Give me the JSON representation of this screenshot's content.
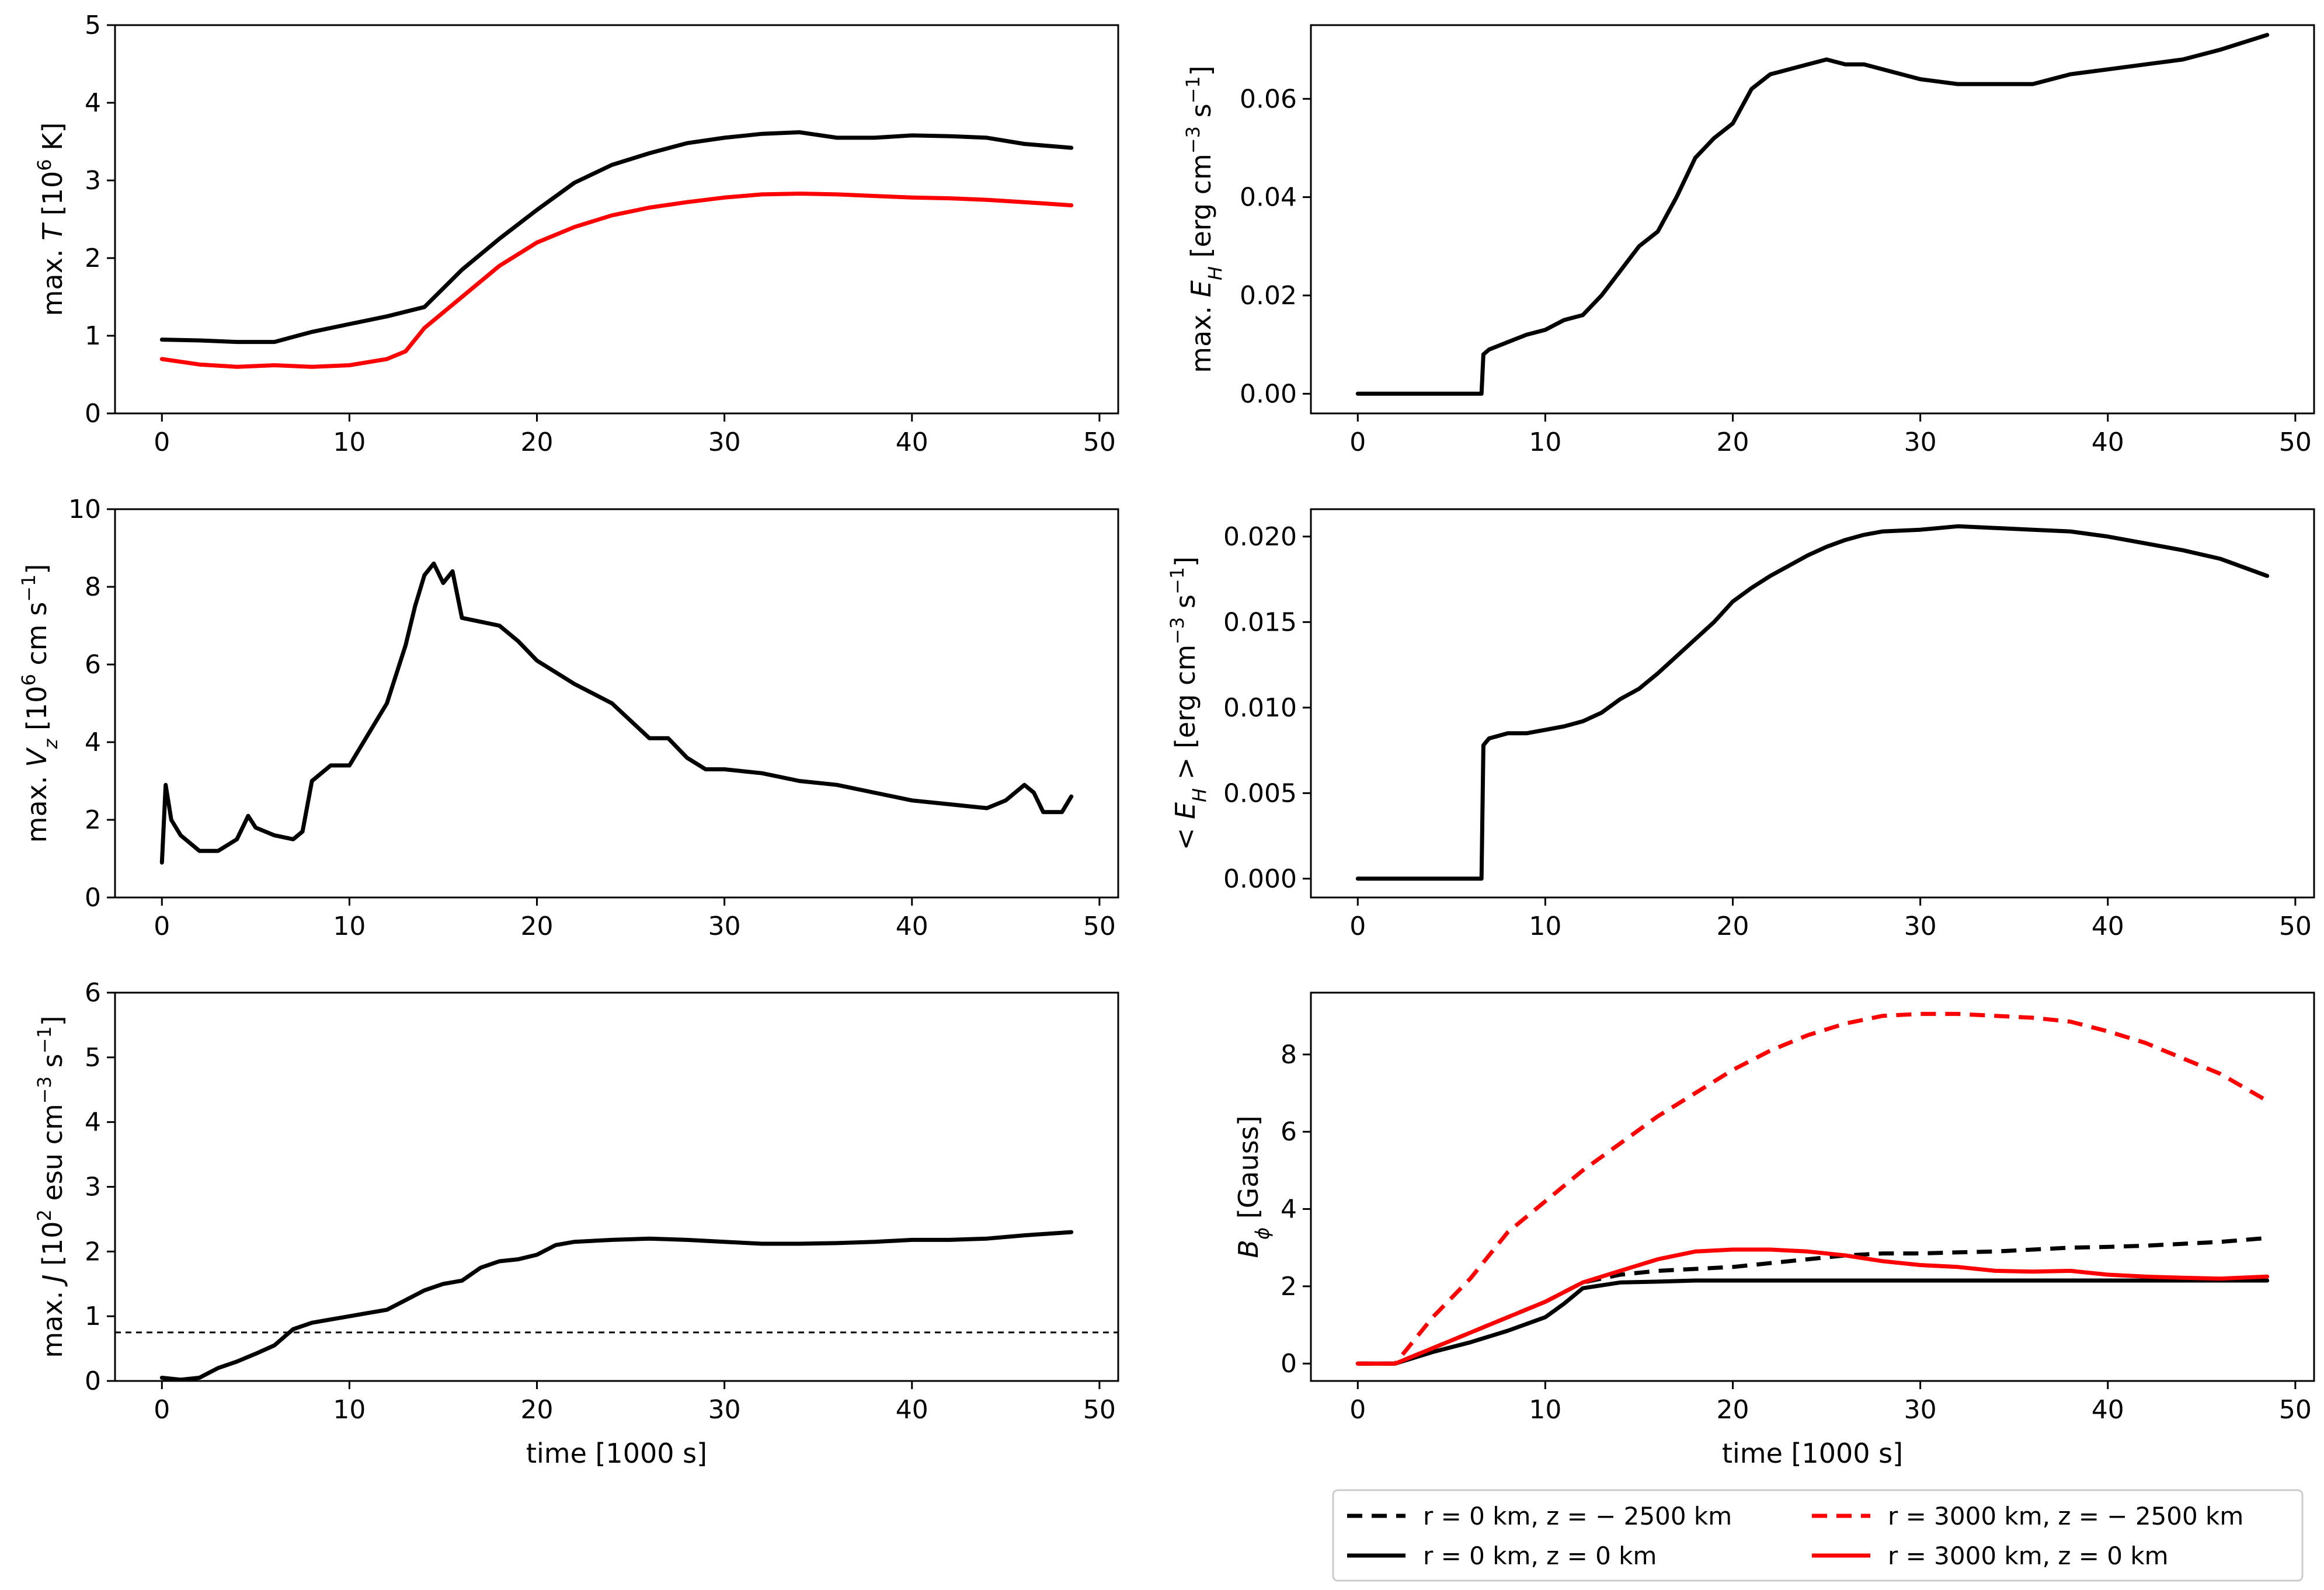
{
  "figure": {
    "xlabel": "time [1000 s]"
  },
  "chart_data": [
    {
      "id": "maxT",
      "type": "line",
      "ylabel": "max. T [10^6 K]",
      "ylabel_parts": {
        "prefix": "max. ",
        "var": "T",
        "mid": " [10",
        "sup": "6",
        "unit": " K]"
      },
      "xlim": [
        -2.5,
        51
      ],
      "ylim": [
        0,
        5
      ],
      "xticks": [
        0,
        10,
        20,
        30,
        40,
        50
      ],
      "xtick_labels": [
        "0",
        "10",
        "20",
        "30",
        "40",
        "50"
      ],
      "yticks": [
        0,
        1,
        2,
        3,
        4,
        5
      ],
      "ytick_labels": [
        "0",
        "1",
        "2",
        "3",
        "4",
        "5"
      ],
      "show_xlabel": false,
      "series": [
        {
          "name": "max T (black)",
          "color": "#000000",
          "dash": "solid",
          "x": [
            0,
            2,
            4,
            6,
            8,
            10,
            12,
            14,
            16,
            18,
            20,
            22,
            24,
            26,
            28,
            30,
            32,
            34,
            36,
            38,
            40,
            42,
            44,
            46,
            48.5
          ],
          "y": [
            0.95,
            0.94,
            0.92,
            0.92,
            1.05,
            1.15,
            1.25,
            1.37,
            1.85,
            2.25,
            2.62,
            2.97,
            3.2,
            3.35,
            3.48,
            3.55,
            3.6,
            3.62,
            3.55,
            3.55,
            3.58,
            3.57,
            3.55,
            3.47,
            3.42
          ]
        },
        {
          "name": "max T (red)",
          "color": "#ff0000",
          "dash": "solid",
          "x": [
            0,
            2,
            4,
            6,
            8,
            10,
            12,
            13,
            14,
            16,
            18,
            20,
            22,
            24,
            26,
            28,
            30,
            32,
            34,
            36,
            38,
            40,
            42,
            44,
            46,
            48.5
          ],
          "y": [
            0.7,
            0.63,
            0.6,
            0.62,
            0.6,
            0.62,
            0.7,
            0.8,
            1.1,
            1.5,
            1.9,
            2.2,
            2.4,
            2.55,
            2.65,
            2.72,
            2.78,
            2.82,
            2.83,
            2.82,
            2.8,
            2.78,
            2.77,
            2.75,
            2.72,
            2.68
          ]
        }
      ]
    },
    {
      "id": "maxEH",
      "type": "line",
      "ylabel": "max. E_H [erg cm^-3 s^-1]",
      "ylabel_parts": {
        "prefix": "max. ",
        "var": "E",
        "sub": "H",
        "unit": " [erg cm",
        "sup1": "−3",
        "unit2": " s",
        "sup2": "−1",
        "end": "]"
      },
      "xlim": [
        -2.5,
        51
      ],
      "ylim": [
        -0.004,
        0.075
      ],
      "xticks": [
        0,
        10,
        20,
        30,
        40,
        50
      ],
      "xtick_labels": [
        "0",
        "10",
        "20",
        "30",
        "40",
        "50"
      ],
      "yticks": [
        0,
        0.02,
        0.04,
        0.06
      ],
      "ytick_labels": [
        "0.00",
        "0.02",
        "0.04",
        "0.06"
      ],
      "show_xlabel": false,
      "series": [
        {
          "name": "max E_H",
          "color": "#000000",
          "dash": "solid",
          "x": [
            0,
            6.6,
            6.7,
            7,
            8,
            9,
            10,
            11,
            12,
            13,
            14,
            15,
            16,
            17,
            18,
            19,
            20,
            21,
            22,
            23,
            24,
            25,
            26,
            27,
            28,
            30,
            32,
            34,
            36,
            38,
            40,
            42,
            44,
            46,
            48.5
          ],
          "y": [
            0,
            0,
            0.008,
            0.009,
            0.0105,
            0.012,
            0.013,
            0.015,
            0.016,
            0.02,
            0.025,
            0.03,
            0.033,
            0.04,
            0.048,
            0.052,
            0.055,
            0.062,
            0.065,
            0.066,
            0.067,
            0.068,
            0.067,
            0.067,
            0.066,
            0.064,
            0.063,
            0.063,
            0.063,
            0.065,
            0.066,
            0.067,
            0.068,
            0.07,
            0.073
          ]
        }
      ]
    },
    {
      "id": "maxVz",
      "type": "line",
      "ylabel": "max. V_z [10^6 cm s^-1]",
      "ylabel_parts": {
        "prefix": "max. ",
        "var": "V",
        "sub": "z",
        "mid": " [10",
        "sup": "6",
        "unit": " cm s",
        "sup2": "−1",
        "end": "]"
      },
      "xlim": [
        -2.5,
        51
      ],
      "ylim": [
        0,
        10
      ],
      "xticks": [
        0,
        10,
        20,
        30,
        40,
        50
      ],
      "xtick_labels": [
        "0",
        "10",
        "20",
        "30",
        "40",
        "50"
      ],
      "yticks": [
        0,
        2,
        4,
        6,
        8,
        10
      ],
      "ytick_labels": [
        "0",
        "2",
        "4",
        "6",
        "8",
        "10"
      ],
      "show_xlabel": false,
      "series": [
        {
          "name": "max V_z",
          "color": "#000000",
          "dash": "solid",
          "x": [
            0,
            0.2,
            0.5,
            1,
            2,
            3,
            4,
            4.6,
            5,
            6,
            7,
            7.5,
            8,
            9,
            10,
            11,
            12,
            13,
            13.5,
            14,
            14.5,
            15,
            15.5,
            16,
            17,
            18,
            19,
            20,
            22,
            24,
            26,
            27,
            28,
            29,
            30,
            32,
            34,
            36,
            38,
            40,
            42,
            44,
            45,
            46,
            46.5,
            47,
            48,
            48.5
          ],
          "y": [
            0.9,
            2.9,
            2.0,
            1.6,
            1.2,
            1.2,
            1.5,
            2.1,
            1.8,
            1.6,
            1.5,
            1.7,
            3.0,
            3.4,
            3.4,
            4.2,
            5.0,
            6.5,
            7.5,
            8.3,
            8.6,
            8.1,
            8.4,
            7.2,
            7.1,
            7.0,
            6.6,
            6.1,
            5.5,
            5.0,
            4.1,
            4.1,
            3.6,
            3.3,
            3.3,
            3.2,
            3.0,
            2.9,
            2.7,
            2.5,
            2.4,
            2.3,
            2.5,
            2.9,
            2.7,
            2.2,
            2.2,
            2.6
          ]
        }
      ]
    },
    {
      "id": "meanEH",
      "type": "line",
      "ylabel": "< E_H > [erg cm^-3 s^-1]",
      "ylabel_parts": {
        "prefix": "< ",
        "var": "E",
        "sub": "H",
        "mid": " >  [erg cm",
        "sup1": "−3",
        "unit2": " s",
        "sup2": "−1",
        "end": "]"
      },
      "xlim": [
        -2.5,
        51
      ],
      "ylim": [
        -0.0011,
        0.0216
      ],
      "xticks": [
        0,
        10,
        20,
        30,
        40,
        50
      ],
      "xtick_labels": [
        "0",
        "10",
        "20",
        "30",
        "40",
        "50"
      ],
      "yticks": [
        0,
        0.005,
        0.01,
        0.015,
        0.02
      ],
      "ytick_labels": [
        "0.000",
        "0.005",
        "0.010",
        "0.015",
        "0.020"
      ],
      "show_xlabel": false,
      "series": [
        {
          "name": "mean E_H",
          "color": "#000000",
          "dash": "solid",
          "x": [
            0,
            6.6,
            6.7,
            7,
            8,
            9,
            10,
            11,
            12,
            13,
            14,
            15,
            16,
            17,
            18,
            19,
            20,
            21,
            22,
            23,
            24,
            25,
            26,
            27,
            28,
            30,
            32,
            34,
            36,
            38,
            40,
            42,
            44,
            46,
            48.5
          ],
          "y": [
            0,
            0,
            0.0078,
            0.0082,
            0.0085,
            0.0085,
            0.0087,
            0.0089,
            0.0092,
            0.0097,
            0.0105,
            0.0111,
            0.012,
            0.013,
            0.014,
            0.015,
            0.0162,
            0.017,
            0.0177,
            0.0183,
            0.0189,
            0.0194,
            0.0198,
            0.0201,
            0.0203,
            0.0204,
            0.0206,
            0.0205,
            0.0204,
            0.0203,
            0.02,
            0.0196,
            0.0192,
            0.0187,
            0.0177
          ]
        }
      ]
    },
    {
      "id": "maxJ",
      "type": "line",
      "ylabel": "max. J [10^2 esu cm^-3 s^-1]",
      "ylabel_parts": {
        "prefix": "max. ",
        "var": "J",
        "mid": " [10",
        "sup": "2",
        "unit": " esu cm",
        "sup1": "−3",
        "unit2": " s",
        "sup2": "−1",
        "end": "]"
      },
      "xlim": [
        -2.5,
        51
      ],
      "ylim": [
        0,
        6
      ],
      "xticks": [
        0,
        10,
        20,
        30,
        40,
        50
      ],
      "xtick_labels": [
        "0",
        "10",
        "20",
        "30",
        "40",
        "50"
      ],
      "yticks": [
        0,
        1,
        2,
        3,
        4,
        5,
        6
      ],
      "ytick_labels": [
        "0",
        "1",
        "2",
        "3",
        "4",
        "5",
        "6"
      ],
      "show_xlabel": true,
      "hline": {
        "y": 0.75,
        "color": "#000000",
        "dash": "10,8"
      },
      "series": [
        {
          "name": "max J",
          "color": "#000000",
          "dash": "solid",
          "x": [
            0,
            1,
            2,
            3,
            4,
            5,
            6,
            7,
            8,
            9,
            10,
            11,
            12,
            13,
            14,
            15,
            16,
            17,
            18,
            19,
            20,
            21,
            22,
            24,
            26,
            28,
            30,
            32,
            34,
            36,
            38,
            40,
            42,
            44,
            46,
            48.5
          ],
          "y": [
            0.05,
            0.02,
            0.05,
            0.2,
            0.3,
            0.42,
            0.55,
            0.8,
            0.9,
            0.95,
            1.0,
            1.05,
            1.1,
            1.25,
            1.4,
            1.5,
            1.55,
            1.75,
            1.85,
            1.88,
            1.95,
            2.1,
            2.15,
            2.18,
            2.2,
            2.18,
            2.15,
            2.12,
            2.12,
            2.13,
            2.15,
            2.18,
            2.18,
            2.2,
            2.25,
            2.3
          ]
        }
      ]
    },
    {
      "id": "Bphi",
      "type": "line",
      "ylabel": "B_phi [Gauss]",
      "ylabel_parts": {
        "var": "B",
        "sub": "ϕ",
        "unit": " [Gauss]"
      },
      "xlim": [
        -2.5,
        51
      ],
      "ylim": [
        -0.45,
        9.6
      ],
      "xticks": [
        0,
        10,
        20,
        30,
        40,
        50
      ],
      "xtick_labels": [
        "0",
        "10",
        "20",
        "30",
        "40",
        "50"
      ],
      "yticks": [
        0,
        2,
        4,
        6,
        8
      ],
      "ytick_labels": [
        "0",
        "2",
        "4",
        "6",
        "8"
      ],
      "show_xlabel": true,
      "legend": {
        "placement": "below",
        "entries": [
          "r = 0 km, z = − 2500 km",
          "r = 3000 km, z = − 2500 km",
          "r = 0 km, z = 0 km",
          "r = 3000 km, z = 0 km"
        ]
      },
      "series": [
        {
          "name": "r = 0 km, z = − 2500 km",
          "color": "#000000",
          "dash": "dashed",
          "x": [
            0,
            2,
            4,
            6,
            8,
            10,
            12,
            14,
            16,
            18,
            20,
            22,
            24,
            26,
            28,
            30,
            32,
            34,
            36,
            38,
            40,
            42,
            44,
            46,
            48.5
          ],
          "y": [
            0,
            0,
            0.4,
            0.8,
            1.2,
            1.6,
            2.1,
            2.3,
            2.4,
            2.45,
            2.5,
            2.6,
            2.7,
            2.8,
            2.85,
            2.85,
            2.88,
            2.9,
            2.95,
            3.0,
            3.02,
            3.05,
            3.1,
            3.15,
            3.25
          ]
        },
        {
          "name": "r = 3000 km, z = − 2500 km",
          "color": "#ff0000",
          "dash": "dashed",
          "x": [
            0,
            2,
            3,
            4,
            6,
            8,
            10,
            12,
            14,
            16,
            18,
            20,
            22,
            24,
            26,
            28,
            30,
            32,
            34,
            36,
            38,
            40,
            42,
            44,
            46,
            48.5
          ],
          "y": [
            0,
            0,
            0.6,
            1.2,
            2.2,
            3.4,
            4.2,
            5.0,
            5.7,
            6.4,
            7.0,
            7.6,
            8.1,
            8.5,
            8.8,
            9.0,
            9.05,
            9.05,
            9.0,
            8.95,
            8.85,
            8.6,
            8.3,
            7.9,
            7.5,
            6.8
          ]
        },
        {
          "name": "r = 0 km, z = 0 km",
          "color": "#000000",
          "dash": "solid",
          "x": [
            0,
            2,
            4,
            6,
            8,
            10,
            11,
            12,
            14,
            16,
            18,
            20,
            22,
            24,
            26,
            28,
            30,
            32,
            34,
            36,
            38,
            40,
            42,
            44,
            46,
            48.5
          ],
          "y": [
            0,
            0,
            0.3,
            0.55,
            0.85,
            1.2,
            1.55,
            1.95,
            2.1,
            2.12,
            2.15,
            2.15,
            2.15,
            2.15,
            2.15,
            2.15,
            2.15,
            2.15,
            2.15,
            2.15,
            2.15,
            2.15,
            2.15,
            2.15,
            2.15,
            2.15
          ]
        },
        {
          "name": "r = 3000 km, z = 0 km",
          "color": "#ff0000",
          "dash": "solid",
          "x": [
            0,
            2,
            4,
            6,
            8,
            10,
            12,
            14,
            16,
            18,
            20,
            22,
            24,
            26,
            28,
            30,
            32,
            34,
            36,
            38,
            40,
            42,
            44,
            46,
            48.5
          ],
          "y": [
            0,
            0,
            0.4,
            0.8,
            1.2,
            1.6,
            2.1,
            2.4,
            2.7,
            2.9,
            2.95,
            2.95,
            2.9,
            2.8,
            2.65,
            2.55,
            2.5,
            2.4,
            2.38,
            2.4,
            2.3,
            2.25,
            2.22,
            2.2,
            2.25
          ]
        }
      ]
    }
  ]
}
